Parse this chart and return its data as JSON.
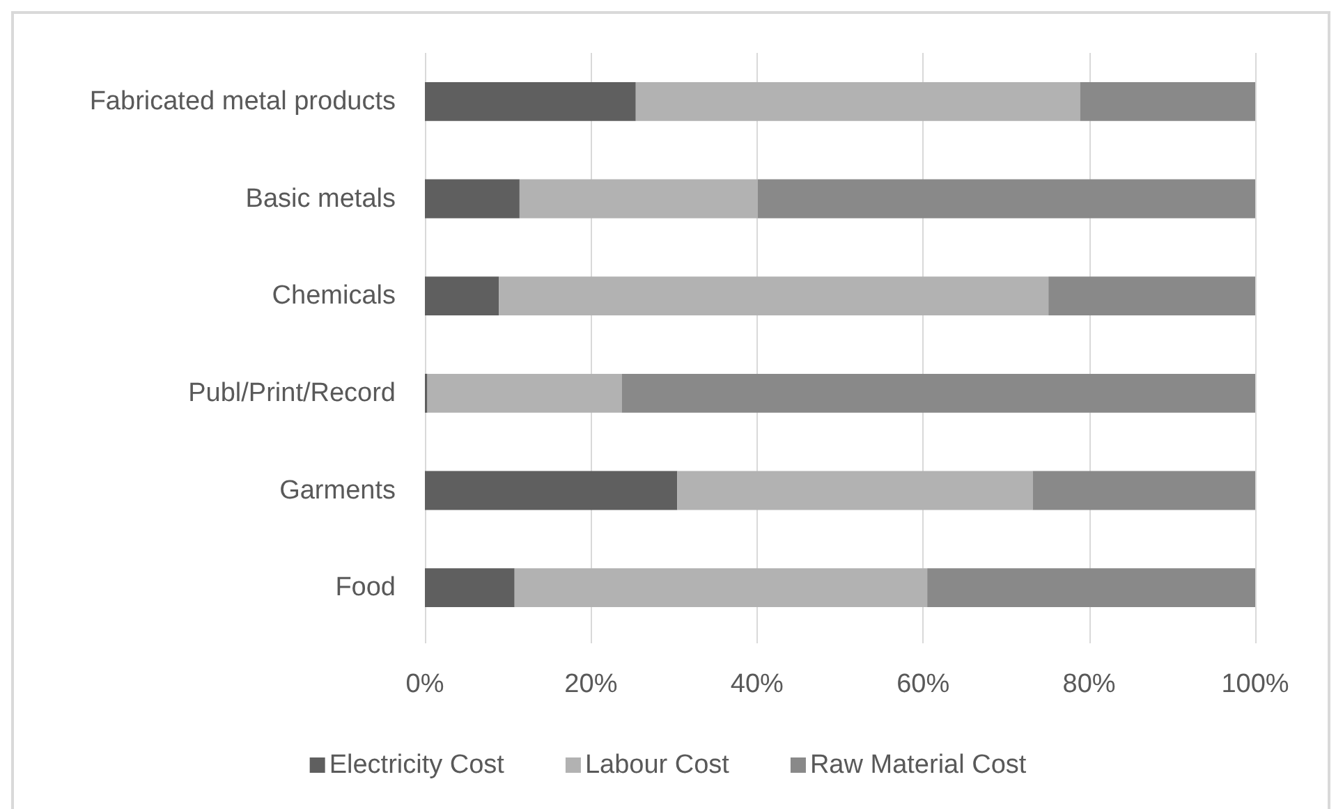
{
  "chart_data": {
    "type": "bar",
    "orientation": "horizontal",
    "stacked": true,
    "categories": [
      "Fabricated metal products",
      "Basic metals",
      "Chemicals",
      "Publ/Print/Record",
      "Garments",
      "Food"
    ],
    "series": [
      {
        "name": "Electricity Cost",
        "color": "#5f5f5f",
        "values": [
          25.4,
          11.4,
          8.9,
          0.3,
          30.4,
          10.8
        ]
      },
      {
        "name": "Labour Cost",
        "color": "#b2b2b2",
        "values": [
          53.5,
          28.7,
          66.2,
          23.4,
          42.8,
          49.7
        ]
      },
      {
        "name": "Raw Material Cost",
        "color": "#898989",
        "values": [
          21.1,
          59.9,
          24.9,
          76.3,
          26.8,
          39.5
        ]
      }
    ],
    "xlim": [
      0,
      100
    ],
    "xticks": [
      {
        "value": 0,
        "label": "0%"
      },
      {
        "value": 20,
        "label": "20%"
      },
      {
        "value": 40,
        "label": "40%"
      },
      {
        "value": 60,
        "label": "60%"
      },
      {
        "value": 80,
        "label": "80%"
      },
      {
        "value": 100,
        "label": "100%"
      }
    ],
    "grid": "x",
    "legend": "bottom"
  }
}
